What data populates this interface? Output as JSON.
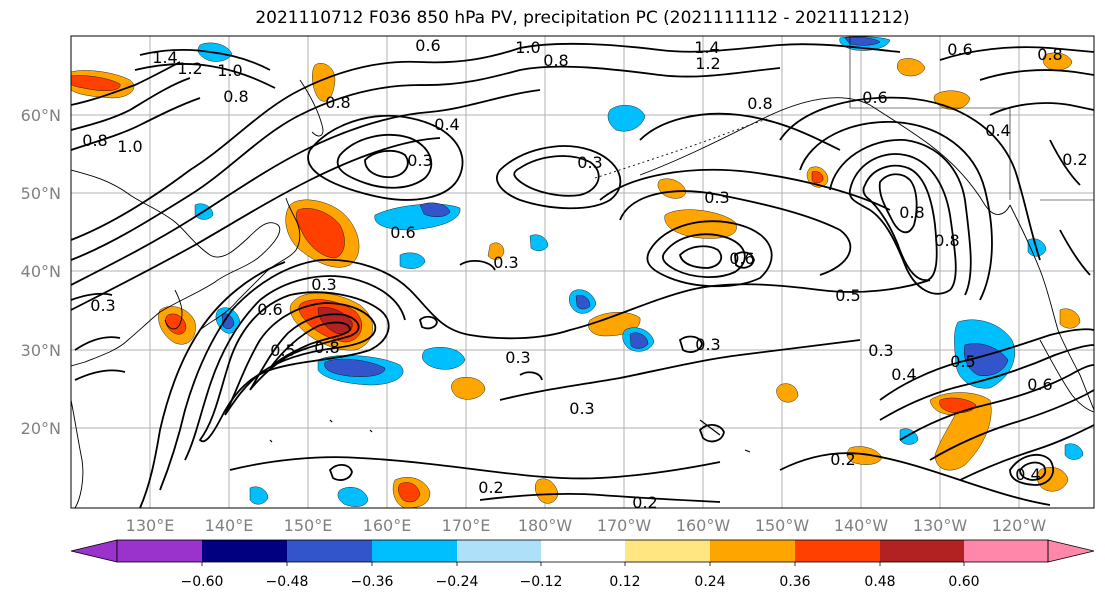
{
  "title": "2021110712 F036 850 hPa PV, precipitation PC (2021111112 - 2021111212)",
  "axes": {
    "lat_labels": [
      "60°N",
      "50°N",
      "40°N",
      "30°N",
      "20°N"
    ],
    "lon_labels": [
      "130°E",
      "140°E",
      "150°E",
      "160°E",
      "170°E",
      "180°W",
      "170°W",
      "160°W",
      "150°W",
      "140°W",
      "130°W",
      "120°W"
    ],
    "label_color": "#808080"
  },
  "colorbar": {
    "colors": [
      "#9933cc",
      "#000080",
      "#3355cc",
      "#00bfff",
      "#aee0fa",
      "#ffffff",
      "#ffe680",
      "#ffa500",
      "#ff4000",
      "#b22222",
      "#ff88aa"
    ],
    "tick_labels": [
      "−0.60",
      "−0.48",
      "−0.36",
      "−0.24",
      "−0.12",
      "0.12",
      "0.24",
      "0.36",
      "0.48",
      "0.60"
    ]
  },
  "contour_labels": [
    "1.4",
    "1.2",
    "1.0",
    "0.8",
    "0.6",
    "1.0",
    "0.8",
    "1.4",
    "1.2",
    "0.6",
    "0.8",
    "0.8",
    "1.0",
    "0.8",
    "0.6",
    "0.4",
    "0.4",
    "0.3",
    "0.3",
    "0.3",
    "0.8",
    "0.2",
    "0.6",
    "0.3",
    "0.6",
    "0.8",
    "0.8",
    "0.3",
    "0.6",
    "0.5",
    "0.5",
    "0.8",
    "0.3",
    "0.3",
    "0.3",
    "0.5",
    "0.4",
    "0.6",
    "0.3",
    "0.2",
    "0.2",
    "0.2",
    "0.4",
    "0.3"
  ]
}
